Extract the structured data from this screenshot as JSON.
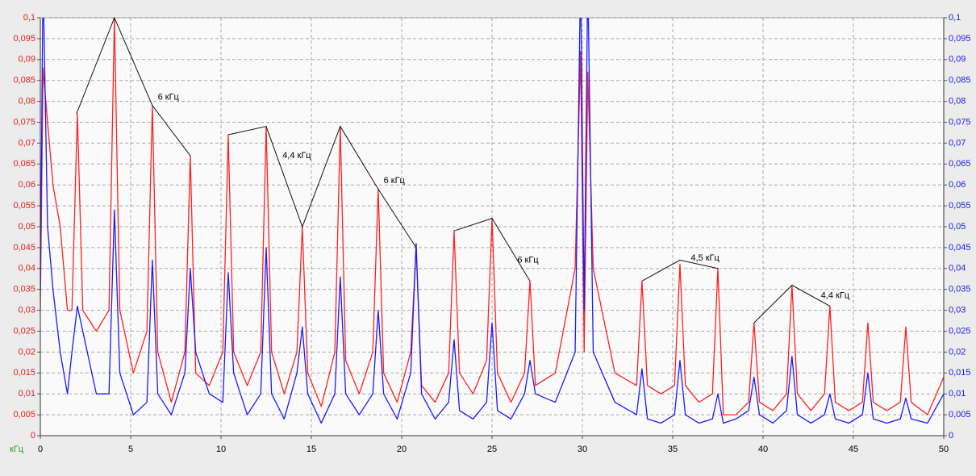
{
  "chart_data": {
    "type": "line",
    "x_unit_label": "кГц",
    "x": [
      0,
      0.15,
      0.4,
      0.7,
      1.1,
      1.5,
      1.75,
      2.05,
      2.35,
      3.1,
      3.8,
      4.1,
      4.4,
      5.15,
      5.9,
      6.2,
      6.5,
      7.25,
      8.0,
      8.3,
      8.6,
      9.35,
      10.1,
      10.4,
      10.7,
      11.45,
      12.2,
      12.5,
      12.8,
      13.5,
      14.2,
      14.5,
      14.8,
      15.55,
      16.3,
      16.6,
      16.9,
      17.65,
      18.4,
      18.7,
      19.0,
      19.75,
      20.5,
      20.8,
      21.1,
      21.85,
      22.6,
      22.9,
      23.2,
      23.95,
      24.7,
      25.0,
      25.3,
      26.05,
      26.8,
      27.1,
      27.4,
      28.5,
      29.6,
      29.9,
      30.1,
      30.3,
      30.6,
      31.8,
      33.0,
      33.3,
      33.6,
      34.35,
      35.1,
      35.4,
      35.7,
      36.45,
      37.2,
      37.5,
      37.8,
      38.5,
      39.2,
      39.5,
      39.8,
      40.55,
      41.3,
      41.6,
      41.9,
      42.65,
      43.4,
      43.7,
      44.0,
      44.75,
      45.5,
      45.8,
      46.1,
      46.85,
      47.6,
      47.9,
      48.2,
      49.1,
      50
    ],
    "series": [
      {
        "color": "#ff2020",
        "axis": "y",
        "values": [
          0.03,
          0.088,
          0.075,
          0.06,
          0.05,
          0.03,
          0.03,
          0.077,
          0.03,
          0.025,
          0.03,
          0.1,
          0.03,
          0.015,
          0.025,
          0.079,
          0.02,
          0.008,
          0.02,
          0.067,
          0.015,
          0.012,
          0.02,
          0.072,
          0.02,
          0.012,
          0.02,
          0.074,
          0.02,
          0.01,
          0.02,
          0.05,
          0.015,
          0.007,
          0.02,
          0.074,
          0.018,
          0.01,
          0.02,
          0.059,
          0.015,
          0.008,
          0.02,
          0.045,
          0.012,
          0.008,
          0.015,
          0.049,
          0.015,
          0.01,
          0.018,
          0.052,
          0.015,
          0.008,
          0.015,
          0.037,
          0.012,
          0.015,
          0.04,
          0.092,
          0.02,
          0.087,
          0.04,
          0.015,
          0.012,
          0.037,
          0.012,
          0.01,
          0.012,
          0.041,
          0.012,
          0.008,
          0.01,
          0.04,
          0.005,
          0.005,
          0.008,
          0.027,
          0.008,
          0.006,
          0.01,
          0.036,
          0.01,
          0.006,
          0.01,
          0.031,
          0.008,
          0.006,
          0.008,
          0.027,
          0.008,
          0.006,
          0.008,
          0.026,
          0.008,
          0.005,
          0.014
        ]
      },
      {
        "color": "#1a1aff",
        "axis": "y2",
        "values": [
          0.035,
          0.11,
          0.05,
          0.035,
          0.02,
          0.01,
          0.02,
          0.031,
          0.025,
          0.01,
          0.01,
          0.054,
          0.015,
          0.005,
          0.008,
          0.042,
          0.01,
          0.005,
          0.015,
          0.04,
          0.02,
          0.01,
          0.008,
          0.039,
          0.015,
          0.005,
          0.01,
          0.045,
          0.01,
          0.004,
          0.015,
          0.026,
          0.01,
          0.003,
          0.01,
          0.038,
          0.01,
          0.005,
          0.01,
          0.03,
          0.01,
          0.004,
          0.015,
          0.046,
          0.01,
          0.004,
          0.008,
          0.023,
          0.006,
          0.004,
          0.008,
          0.027,
          0.006,
          0.004,
          0.01,
          0.018,
          0.01,
          0.008,
          0.02,
          0.11,
          0.03,
          0.11,
          0.02,
          0.008,
          0.005,
          0.016,
          0.004,
          0.003,
          0.005,
          0.018,
          0.005,
          0.003,
          0.004,
          0.01,
          0.003,
          0.004,
          0.006,
          0.014,
          0.005,
          0.003,
          0.006,
          0.019,
          0.005,
          0.003,
          0.005,
          0.01,
          0.004,
          0.003,
          0.005,
          0.015,
          0.004,
          0.003,
          0.004,
          0.009,
          0.004,
          0.003,
          0.01
        ]
      }
    ],
    "xlim": [
      0,
      50
    ],
    "xticks": [
      0,
      5,
      10,
      15,
      20,
      25,
      30,
      35,
      40,
      45,
      50
    ],
    "ylim": [
      0,
      0.1
    ],
    "yticks": [
      0,
      {
        "value": 0.005,
        "label": "0,005"
      },
      {
        "value": 0.01,
        "label": "0,01"
      },
      {
        "value": 0.015,
        "label": "0,015"
      },
      {
        "value": 0.02,
        "label": "0,02"
      },
      {
        "value": 0.025,
        "label": "0,025"
      },
      {
        "value": 0.03,
        "label": "0,03"
      },
      {
        "value": 0.035,
        "label": "0,035"
      },
      {
        "value": 0.04,
        "label": "0,04"
      },
      {
        "value": 0.045,
        "label": "0,045"
      },
      {
        "value": 0.05,
        "label": "0,05"
      },
      {
        "value": 0.055,
        "label": "0,055"
      },
      {
        "value": 0.06,
        "label": "0,06"
      },
      {
        "value": 0.065,
        "label": "0,065"
      },
      {
        "value": 0.07,
        "label": "0,07"
      },
      {
        "value": 0.075,
        "label": "0,075"
      },
      {
        "value": 0.08,
        "label": "0,08"
      },
      {
        "value": 0.085,
        "label": "0,085"
      },
      {
        "value": 0.09,
        "label": "0,09"
      },
      {
        "value": 0.095,
        "label": "0,095"
      },
      {
        "value": 0.1,
        "label": "0,1"
      }
    ],
    "y2lim": [
      0,
      0.1
    ],
    "y2ticks": [
      0,
      {
        "value": 0.005,
        "label": "0,005"
      },
      {
        "value": 0.01,
        "label": "0,01"
      },
      {
        "value": 0.015,
        "label": "0,015"
      },
      {
        "value": 0.02,
        "label": "0,02"
      },
      {
        "value": 0.025,
        "label": "0,025"
      },
      {
        "value": 0.03,
        "label": "0,03"
      },
      {
        "value": 0.035,
        "label": "0,035"
      },
      {
        "value": 0.04,
        "label": "0,04"
      },
      {
        "value": 0.045,
        "label": "0,045"
      },
      {
        "value": 0.05,
        "label": "0,05"
      },
      {
        "value": 0.055,
        "label": "0,055"
      },
      {
        "value": 0.06,
        "label": "0,06"
      },
      {
        "value": 0.065,
        "label": "0,065"
      },
      {
        "value": 0.07,
        "label": "0,07"
      },
      {
        "value": 0.075,
        "label": "0,075"
      },
      {
        "value": 0.08,
        "label": "0,08"
      },
      {
        "value": 0.085,
        "label": "0,085"
      },
      {
        "value": 0.09,
        "label": "0,09"
      },
      {
        "value": 0.095,
        "label": "0,095"
      },
      {
        "value": 0.1,
        "label": "0,1"
      }
    ],
    "ytick_color": "#e02020",
    "y2tick_color": "#2020e0",
    "x_unit_color": "#2a9a2a",
    "grid": true,
    "envelopes": [
      [
        [
          2.0,
          0.077
        ],
        [
          4.1,
          0.1
        ],
        [
          6.2,
          0.079
        ],
        [
          8.3,
          0.067
        ]
      ],
      [
        [
          10.4,
          0.072
        ],
        [
          12.5,
          0.074
        ],
        [
          14.5,
          0.05
        ],
        [
          16.6,
          0.074
        ],
        [
          18.7,
          0.059
        ],
        [
          20.8,
          0.045
        ]
      ],
      [
        [
          22.9,
          0.049
        ],
        [
          25.0,
          0.052
        ],
        [
          27.1,
          0.037
        ]
      ],
      [
        [
          33.3,
          0.037
        ],
        [
          35.4,
          0.042
        ],
        [
          37.5,
          0.04
        ]
      ],
      [
        [
          39.5,
          0.027
        ],
        [
          41.6,
          0.036
        ],
        [
          43.7,
          0.031
        ]
      ]
    ],
    "annotations": [
      {
        "text": "6 кГц",
        "x": 6.5,
        "y": 0.081
      },
      {
        "text": "4,4 кГц",
        "x": 13.4,
        "y": 0.067
      },
      {
        "text": "6 кГц",
        "x": 19.0,
        "y": 0.061
      },
      {
        "text": "6 кГц",
        "x": 26.4,
        "y": 0.042
      },
      {
        "text": "4,5 кГц",
        "x": 36.0,
        "y": 0.0425
      },
      {
        "text": "4,4 кГц",
        "x": 43.2,
        "y": 0.0335
      }
    ]
  }
}
